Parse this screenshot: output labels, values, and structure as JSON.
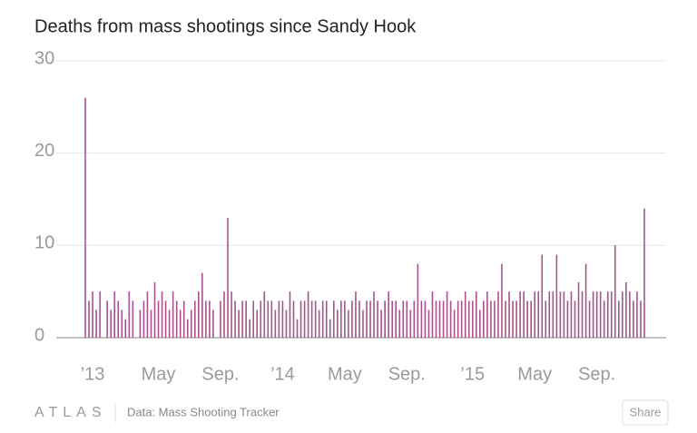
{
  "chart_data": {
    "type": "bar",
    "title": "Deaths from mass shootings since Sandy Hook",
    "categories": [
      null,
      null,
      "’13",
      null,
      null,
      null,
      null,
      null,
      null,
      null,
      null,
      null,
      null,
      null,
      null,
      null,
      null,
      null,
      null,
      null,
      "May",
      null,
      null,
      null,
      null,
      null,
      null,
      null,
      null,
      null,
      null,
      null,
      null,
      null,
      null,
      null,
      null,
      "Sep.",
      null,
      null,
      null,
      null,
      null,
      null,
      null,
      null,
      null,
      null,
      null,
      null,
      null,
      null,
      null,
      null,
      "’14",
      null,
      null,
      null,
      null,
      null,
      null,
      null,
      null,
      null,
      null,
      null,
      null,
      null,
      null,
      null,
      null,
      "May",
      null,
      null,
      null,
      null,
      null,
      null,
      null,
      null,
      null,
      null,
      null,
      null,
      null,
      null,
      null,
      null,
      "Sep.",
      null,
      null,
      null,
      null,
      null,
      null,
      null,
      null,
      null,
      null,
      null,
      null,
      null,
      null,
      null,
      null,
      null,
      "’15",
      null,
      null,
      null,
      null,
      null,
      null,
      null,
      null,
      null,
      null,
      null,
      null,
      null,
      null,
      null,
      null,
      "May",
      null,
      null,
      null,
      null,
      null,
      null,
      null,
      null,
      null,
      null,
      null,
      null,
      null,
      null,
      null,
      null,
      "Sep.",
      null,
      null,
      null,
      null,
      null,
      null,
      null,
      null,
      null,
      null,
      null,
      null,
      null
    ],
    "values": [
      26,
      4,
      5,
      3,
      5,
      0,
      4,
      3,
      5,
      4,
      3,
      2,
      5,
      4,
      0,
      3,
      4,
      5,
      3,
      6,
      4,
      5,
      4,
      3,
      5,
      4,
      3,
      4,
      2,
      3,
      4,
      5,
      7,
      4,
      4,
      3,
      0,
      4,
      5,
      13,
      5,
      4,
      3,
      4,
      4,
      2,
      4,
      3,
      4,
      5,
      4,
      4,
      3,
      4,
      4,
      3,
      5,
      4,
      2,
      4,
      4,
      5,
      4,
      4,
      3,
      4,
      4,
      2,
      4,
      3,
      4,
      4,
      3,
      4,
      5,
      4,
      3,
      4,
      4,
      5,
      4,
      3,
      4,
      5,
      4,
      4,
      3,
      4,
      4,
      3,
      4,
      8,
      4,
      4,
      3,
      5,
      4,
      4,
      4,
      5,
      4,
      3,
      4,
      4,
      5,
      4,
      4,
      5,
      3,
      4,
      5,
      4,
      4,
      5,
      8,
      4,
      5,
      4,
      4,
      5,
      5,
      4,
      4,
      5,
      5,
      9,
      4,
      5,
      5,
      9,
      5,
      5,
      4,
      5,
      4,
      6,
      5,
      8,
      4,
      5,
      5,
      5,
      4,
      5,
      5,
      10,
      4,
      5,
      6,
      5,
      4,
      5,
      4,
      14
    ],
    "color": "#a8528e",
    "ylim": [
      0,
      30
    ],
    "yticks": [
      0,
      10,
      20,
      30
    ],
    "grid": true
  },
  "footer": {
    "logo": "ATLAS",
    "source": "Data: Mass Shooting Tracker",
    "share": "Share"
  }
}
